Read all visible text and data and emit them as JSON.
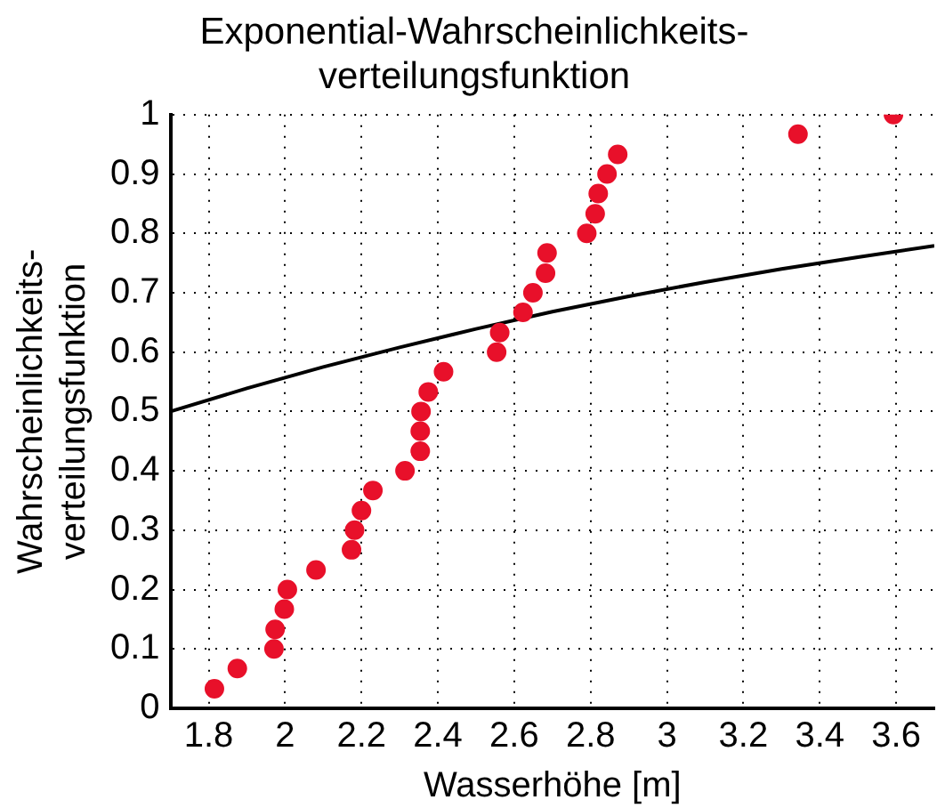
{
  "chart_data": {
    "type": "scatter",
    "title": "Exponential-Wahrscheinlichkeits-\nverteilungsfunktion",
    "xlabel": "Wasserhöhe [m]",
    "ylabel": "Wahrscheinlichkeits-\nverteilungsfunktion",
    "xlim": [
      1.7,
      3.7
    ],
    "xticks": [
      1.8,
      2,
      2.2,
      2.4,
      2.6,
      2.8,
      3,
      3.2,
      3.4,
      3.6
    ],
    "ylim": [
      0,
      1
    ],
    "yticks": [
      0,
      0.1,
      0.2,
      0.3,
      0.4,
      0.5,
      0.6,
      0.7,
      0.8,
      0.9,
      1
    ],
    "grid": true,
    "legend": false,
    "series": [
      {
        "marker": "circle",
        "color": "#e8102a",
        "x": [
          1.815,
          1.875,
          1.971,
          1.974,
          1.998,
          2.006,
          2.081,
          2.174,
          2.182,
          2.2,
          2.23,
          2.314,
          2.354,
          2.354,
          2.356,
          2.375,
          2.415,
          2.554,
          2.562,
          2.623,
          2.649,
          2.682,
          2.686,
          2.79,
          2.812,
          2.82,
          2.843,
          2.871,
          3.343,
          3.593
        ],
        "values": [
          0.033,
          0.067,
          0.1,
          0.133,
          0.167,
          0.2,
          0.233,
          0.267,
          0.3,
          0.333,
          0.367,
          0.4,
          0.433,
          0.467,
          0.5,
          0.533,
          0.567,
          0.6,
          0.633,
          0.667,
          0.7,
          0.733,
          0.767,
          0.8,
          0.833,
          0.867,
          0.9,
          0.933,
          0.967,
          1
        ]
      },
      {
        "type": "line",
        "marker": "none",
        "line_style": "solid",
        "color": "#000000",
        "x": [
          1.7,
          1.9,
          2.1,
          2.3,
          2.5,
          2.7,
          2.9,
          3.1,
          3.3,
          3.5,
          3.7
        ],
        "values": [
          0.5,
          0.539,
          0.575,
          0.608,
          0.639,
          0.668,
          0.694,
          0.718,
          0.74,
          0.76,
          0.779
        ]
      }
    ]
  }
}
